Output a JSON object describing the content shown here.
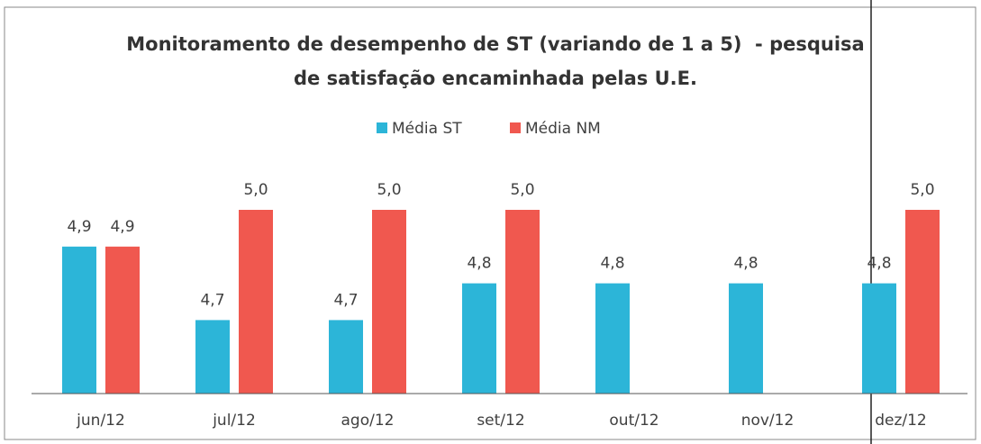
{
  "chart_data": {
    "type": "bar",
    "title": [
      "Monitoramento de desempenho de ST (variando de 1 a 5)  - pesquisa",
      "de satisfação encaminhada pelas U.E."
    ],
    "categories": [
      "jun/12",
      "jul/12",
      "ago/12",
      "set/12",
      "out/12",
      "nov/12",
      "dez/12"
    ],
    "series": [
      {
        "name": "Média ST",
        "color": "#2cb5d8",
        "values": [
          4.9,
          4.7,
          4.7,
          4.8,
          4.8,
          4.8,
          4.8
        ],
        "value_labels": [
          "4,9",
          "4,7",
          "4,7",
          "4,8",
          "4,8",
          "4,8",
          "4,8"
        ]
      },
      {
        "name": "Média NM",
        "color": "#f0584f",
        "values": [
          4.9,
          5.0,
          5.0,
          5.0,
          null,
          null,
          5.0
        ],
        "value_labels": [
          "4,9",
          "5,0",
          "5,0",
          "5,0",
          null,
          null,
          "5,0"
        ]
      }
    ],
    "ylim": [
      4.5,
      5.0
    ],
    "legend": "top"
  }
}
